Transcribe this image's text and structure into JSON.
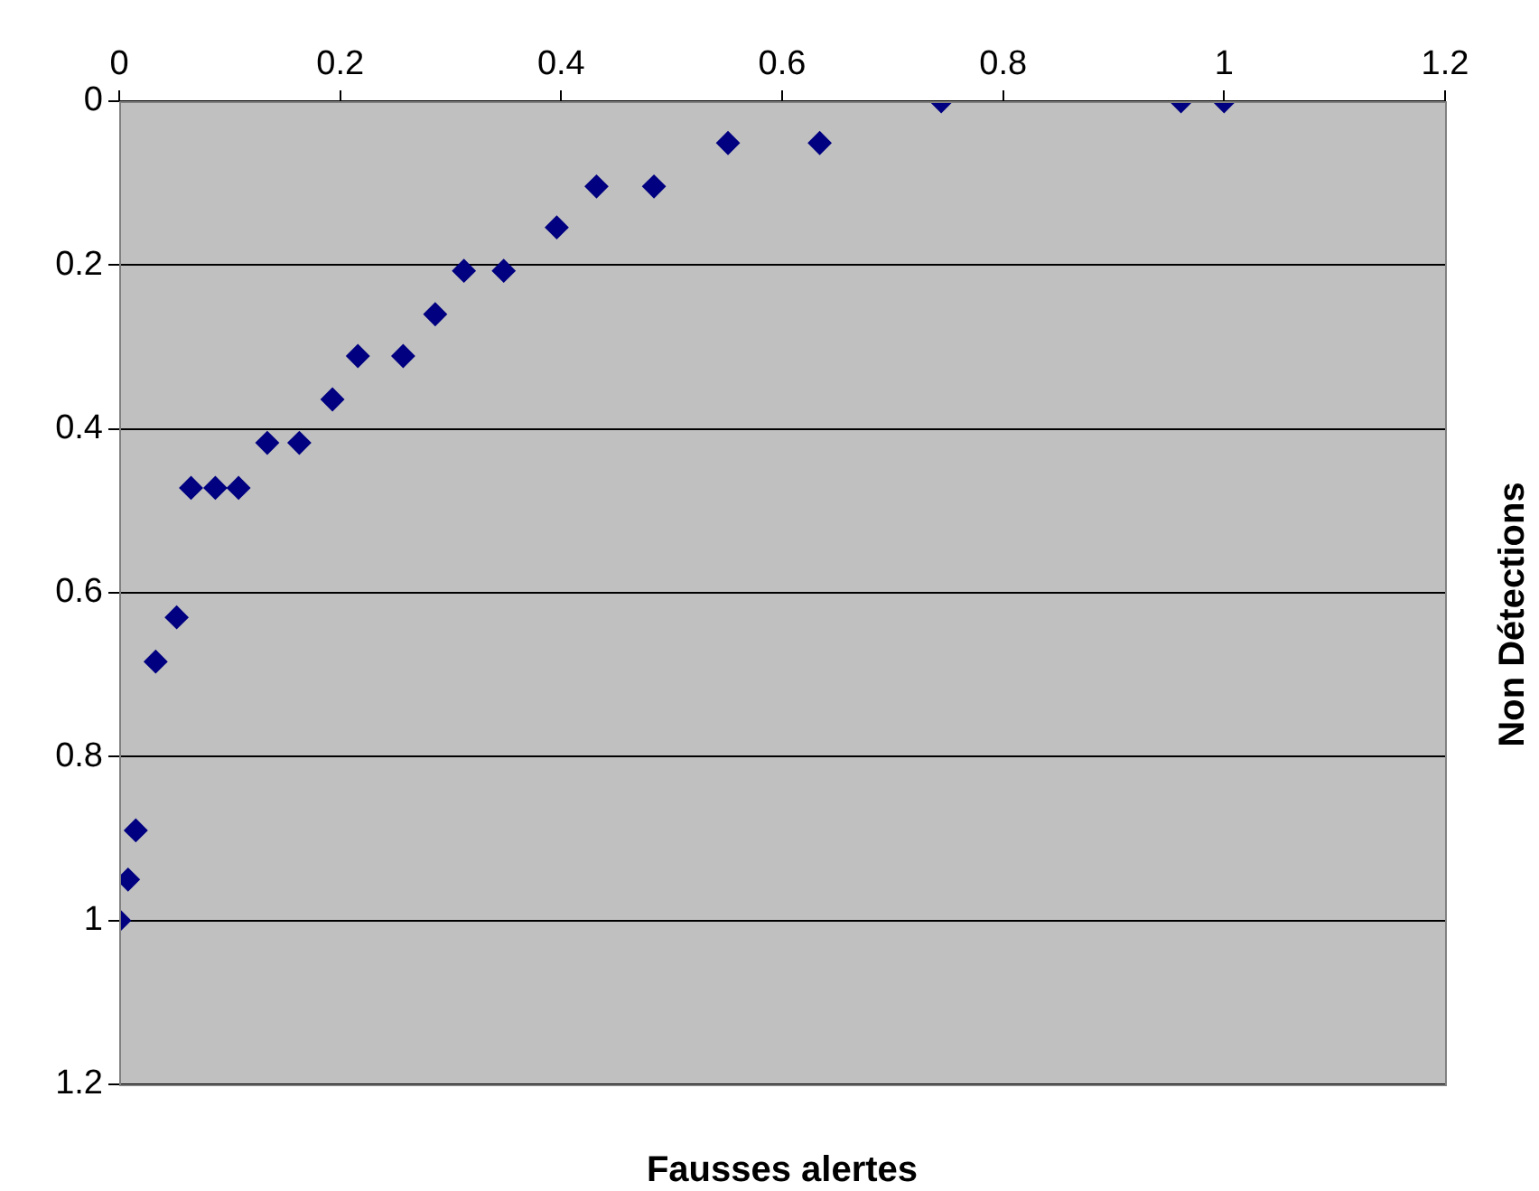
{
  "chart_data": {
    "type": "scatter",
    "xlabel": "Fausses alertes",
    "ylabel": "Non Détections",
    "x": [
      0,
      0.008,
      0.015,
      0.033,
      0.052,
      0.065,
      0.087,
      0.108,
      0.134,
      0.163,
      0.193,
      0.216,
      0.257,
      0.286,
      0.312,
      0.348,
      0.396,
      0.432,
      0.484,
      0.551,
      0.634,
      0.744,
      0.961,
      1.0
    ],
    "series": [
      {
        "color": "#000080",
        "values": [
          1.0,
          0.95,
          0.89,
          0.684,
          0.63,
          0.472,
          0.472,
          0.472,
          0.417,
          0.417,
          0.364,
          0.311,
          0.311,
          0.26,
          0.207,
          0.207,
          0.154,
          0.104,
          0.104,
          0.051,
          0.051,
          0,
          0,
          0
        ]
      }
    ],
    "xlim": [
      0,
      1.2
    ],
    "xticks": [
      0,
      0.2,
      0.4,
      0.6,
      0.8,
      1,
      1.2
    ],
    "ylim": [
      1.2,
      0
    ],
    "yticks": [
      0,
      0.2,
      0.4,
      0.6,
      0.8,
      1,
      1.2
    ],
    "grid": "y",
    "legend": false,
    "marker": "diamond"
  }
}
